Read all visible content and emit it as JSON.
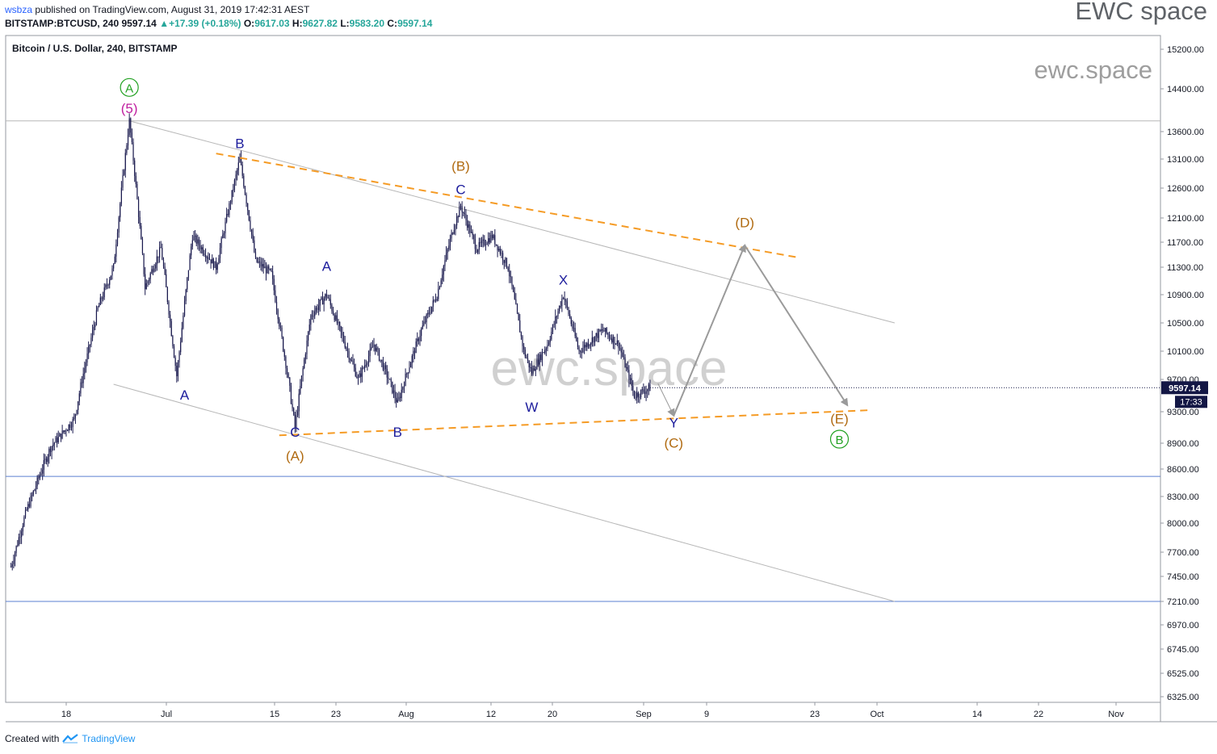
{
  "header": {
    "user": "wsbza",
    "published": "published on TradingView.com, August 31, 2019 17:42:31 AEST",
    "symbol": "BITSTAMP:BTCUSD, 240",
    "last": "9597.14",
    "up_arrow": "▲",
    "change": "+17.39 (+0.18%)",
    "o_label": "O:",
    "o_val": "9617.03",
    "h_label": "H:",
    "h_val": "9627.82",
    "l_label": "L:",
    "l_val": "9583.20",
    "c_label": "C:",
    "c_val": "9597.14"
  },
  "brand": "EWC space",
  "footer": {
    "created": "Created with",
    "tradingview": "TradingView",
    "logo_icon": "tradingview-logo-icon"
  },
  "colors": {
    "candle": "#1a1a4e",
    "orange": "#f59b25",
    "navy": "#1c1c9c",
    "brown": "#b06a10",
    "green": "#21a121",
    "magenta": "#c020a0",
    "blue_line": "#5b7fd1",
    "gray": "#b7b7b7",
    "arrow": "#9a9a9a"
  },
  "chart_data": {
    "type": "candlestick",
    "title": "Bitcoin / U.S. Dollar, 240, BITSTAMP",
    "y_ticks": [
      "15200.00",
      "14400.00",
      "13600.00",
      "13100.00",
      "12600.00",
      "12100.00",
      "11700.00",
      "11300.00",
      "10900.00",
      "10500.00",
      "10100.00",
      "9700.00",
      "9300.00",
      "8900.00",
      "8600.00",
      "8300.00",
      "8000.00",
      "7700.00",
      "7450.00",
      "7210.00",
      "6970.00",
      "6745.00",
      "6525.00",
      "6325.00"
    ],
    "x_ticks": [
      "18",
      "Jul",
      "15",
      "23",
      "Aug",
      "12",
      "20",
      "Sep",
      "9",
      "23",
      "Oct",
      "14",
      "22",
      "Nov"
    ],
    "last_price_badge": "9597.14",
    "countdown_badge": "17:33",
    "watermark_large": "ewc.space",
    "watermark_top": "ewc.space",
    "price_path": [
      {
        "date": "2019-06-11",
        "price": 7550
      },
      {
        "date": "2019-06-13",
        "price": 8150
      },
      {
        "date": "2019-06-16",
        "price": 8850
      },
      {
        "date": "2019-06-19",
        "price": 9200
      },
      {
        "date": "2019-06-22",
        "price": 10700
      },
      {
        "date": "2019-06-24",
        "price": 11300
      },
      {
        "date": "2019-06-26",
        "price": 13800
      },
      {
        "date": "2019-06-28",
        "price": 11000
      },
      {
        "date": "2019-06-30",
        "price": 11600
      },
      {
        "date": "2019-07-02",
        "price": 9750
      },
      {
        "date": "2019-07-04",
        "price": 11800
      },
      {
        "date": "2019-07-07",
        "price": 11300
      },
      {
        "date": "2019-07-10",
        "price": 13100
      },
      {
        "date": "2019-07-12",
        "price": 11400
      },
      {
        "date": "2019-07-14",
        "price": 11200
      },
      {
        "date": "2019-07-17",
        "price": 9100
      },
      {
        "date": "2019-07-19",
        "price": 10600
      },
      {
        "date": "2019-07-21",
        "price": 10900
      },
      {
        "date": "2019-07-25",
        "price": 9700
      },
      {
        "date": "2019-07-27",
        "price": 10200
      },
      {
        "date": "2019-07-30",
        "price": 9400
      },
      {
        "date": "2019-08-02",
        "price": 10400
      },
      {
        "date": "2019-08-04",
        "price": 10900
      },
      {
        "date": "2019-08-06",
        "price": 11900
      },
      {
        "date": "2019-08-07",
        "price": 12300
      },
      {
        "date": "2019-08-09",
        "price": 11600
      },
      {
        "date": "2019-08-11",
        "price": 11800
      },
      {
        "date": "2019-08-13",
        "price": 11300
      },
      {
        "date": "2019-08-15",
        "price": 10100
      },
      {
        "date": "2019-08-16",
        "price": 9800
      },
      {
        "date": "2019-08-18",
        "price": 10200
      },
      {
        "date": "2019-08-20",
        "price": 10900
      },
      {
        "date": "2019-08-22",
        "price": 10100
      },
      {
        "date": "2019-08-25",
        "price": 10400
      },
      {
        "date": "2019-08-27",
        "price": 10200
      },
      {
        "date": "2019-08-29",
        "price": 9500
      },
      {
        "date": "2019-08-31",
        "price": 9597
      }
    ],
    "wave_labels": [
      {
        "text": "Ⓐ",
        "date": "2019-06-26",
        "price": 14350,
        "color": "green",
        "kind": "circled"
      },
      {
        "text": "(5)",
        "date": "2019-06-26",
        "price": 13950,
        "color": "magenta"
      },
      {
        "text": "A",
        "date": "2019-07-03",
        "price": 9450,
        "color": "navy"
      },
      {
        "text": "B",
        "date": "2019-07-10",
        "price": 13300,
        "color": "navy"
      },
      {
        "text": "C",
        "date": "2019-07-17",
        "price": 8980,
        "color": "navy"
      },
      {
        "text": "(A)",
        "date": "2019-07-17",
        "price": 8700,
        "color": "brown"
      },
      {
        "text": "A",
        "date": "2019-07-21",
        "price": 11250,
        "color": "navy"
      },
      {
        "text": "B",
        "date": "2019-07-30",
        "price": 8980,
        "color": "navy"
      },
      {
        "text": "(B)",
        "date": "2019-08-07",
        "price": 12900,
        "color": "brown"
      },
      {
        "text": "C",
        "date": "2019-08-07",
        "price": 12500,
        "color": "navy"
      },
      {
        "text": "W",
        "date": "2019-08-16",
        "price": 9300,
        "color": "navy"
      },
      {
        "text": "X",
        "date": "2019-08-20",
        "price": 11050,
        "color": "navy"
      },
      {
        "text": "Y",
        "date": "2019-09-03",
        "price": 9100,
        "color": "navy"
      },
      {
        "text": "(C)",
        "date": "2019-09-03",
        "price": 8850,
        "color": "brown"
      },
      {
        "text": "(D)",
        "date": "2019-09-12",
        "price": 11950,
        "color": "brown"
      },
      {
        "text": "(E)",
        "date": "2019-09-24",
        "price": 9150,
        "color": "brown"
      },
      {
        "text": "Ⓑ",
        "date": "2019-09-24",
        "price": 8900,
        "color": "green",
        "kind": "circled"
      }
    ],
    "resistance_line": {
      "from": {
        "date": "2019-07-07",
        "price": 13200
      },
      "to": {
        "date": "2019-09-19",
        "price": 11450
      },
      "style": "dashed",
      "color": "orange"
    },
    "support_line": {
      "from": {
        "date": "2019-07-15",
        "price": 9000
      },
      "to": {
        "date": "2019-09-28",
        "price": 9320
      },
      "style": "dashed",
      "color": "orange"
    },
    "channel_upper": {
      "from": {
        "date": "2019-06-26",
        "price": 13800
      },
      "to": {
        "date": "2019-10-01",
        "price": 10500
      },
      "color": "gray"
    },
    "channel_lower": {
      "from": {
        "date": "2019-06-24",
        "price": 9640
      },
      "to": {
        "date": "2019-10-01",
        "price": 7210
      },
      "color": "gray"
    },
    "horizontal_lines": [
      {
        "price": 13800,
        "color": "gray"
      },
      {
        "price": 8520,
        "color": "blue_line"
      },
      {
        "price": 7210,
        "color": "blue_line"
      }
    ],
    "projection_path": [
      {
        "date": "2019-09-01",
        "price": 9650
      },
      {
        "date": "2019-09-03",
        "price": 9250
      },
      {
        "date": "2019-09-12",
        "price": 11650
      },
      {
        "date": "2019-09-25",
        "price": 9380
      }
    ]
  }
}
